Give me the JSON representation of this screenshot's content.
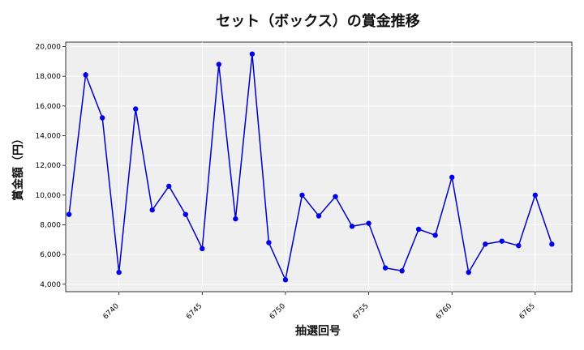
{
  "chart_data": {
    "type": "line",
    "title": "セット（ボックス）の賞金推移",
    "xlabel": "抽選回号",
    "ylabel": "賞金額（円）",
    "xlim": [
      6736.8,
      6767.2
    ],
    "ylim": [
      3500,
      20300
    ],
    "xticks": [
      6740,
      6745,
      6750,
      6755,
      6760,
      6765
    ],
    "yticks": [
      4000,
      6000,
      8000,
      10000,
      12000,
      14000,
      16000,
      18000,
      20000
    ],
    "grid": true,
    "background": "#efefef",
    "line_color": "#0000cc",
    "marker_color": "#0000ee",
    "x": [
      6737,
      6738,
      6739,
      6740,
      6741,
      6742,
      6743,
      6744,
      6745,
      6746,
      6747,
      6748,
      6749,
      6750,
      6751,
      6752,
      6753,
      6754,
      6755,
      6756,
      6757,
      6758,
      6759,
      6760,
      6761,
      6762,
      6763,
      6764,
      6765,
      6766
    ],
    "y": [
      8700,
      18100,
      15200,
      4800,
      15800,
      9000,
      10600,
      8700,
      6400,
      18800,
      8400,
      19500,
      6800,
      4300,
      10000,
      8600,
      9900,
      7900,
      8100,
      5100,
      4900,
      7700,
      7300,
      11200,
      4800,
      6700,
      6900,
      6600,
      10000,
      6700
    ]
  }
}
